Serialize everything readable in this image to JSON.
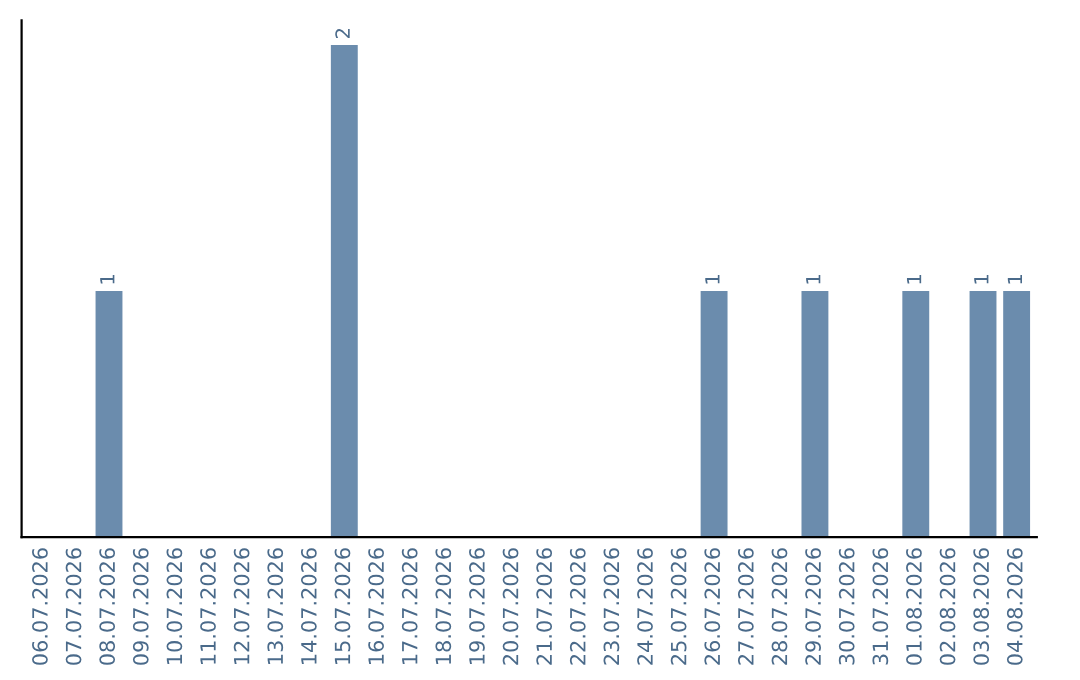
{
  "chart_data": {
    "type": "bar",
    "categories": [
      "06.07.2026",
      "07.07.2026",
      "08.07.2026",
      "09.07.2026",
      "10.07.2026",
      "11.07.2026",
      "12.07.2026",
      "13.07.2026",
      "14.07.2026",
      "15.07.2026",
      "16.07.2026",
      "17.07.2026",
      "18.07.2026",
      "19.07.2026",
      "20.07.2026",
      "21.07.2026",
      "22.07.2026",
      "23.07.2026",
      "24.07.2026",
      "25.07.2026",
      "26.07.2026",
      "27.07.2026",
      "28.07.2026",
      "29.07.2026",
      "30.07.2026",
      "31.07.2026",
      "01.08.2026",
      "02.08.2026",
      "03.08.2026",
      "04.08.2026"
    ],
    "values": [
      0,
      0,
      1,
      0,
      0,
      0,
      0,
      0,
      0,
      2,
      0,
      0,
      0,
      0,
      0,
      0,
      0,
      0,
      0,
      0,
      1,
      0,
      0,
      1,
      0,
      0,
      1,
      0,
      1,
      1
    ],
    "value_labels": [
      null,
      null,
      "1",
      null,
      null,
      null,
      null,
      null,
      null,
      "2",
      null,
      null,
      null,
      null,
      null,
      null,
      null,
      null,
      null,
      null,
      "1",
      null,
      null,
      "1",
      null,
      null,
      "1",
      null,
      "1",
      "1"
    ],
    "color": "#6b8cad",
    "tick_labels": "x",
    "grid": false,
    "legend": false
  }
}
